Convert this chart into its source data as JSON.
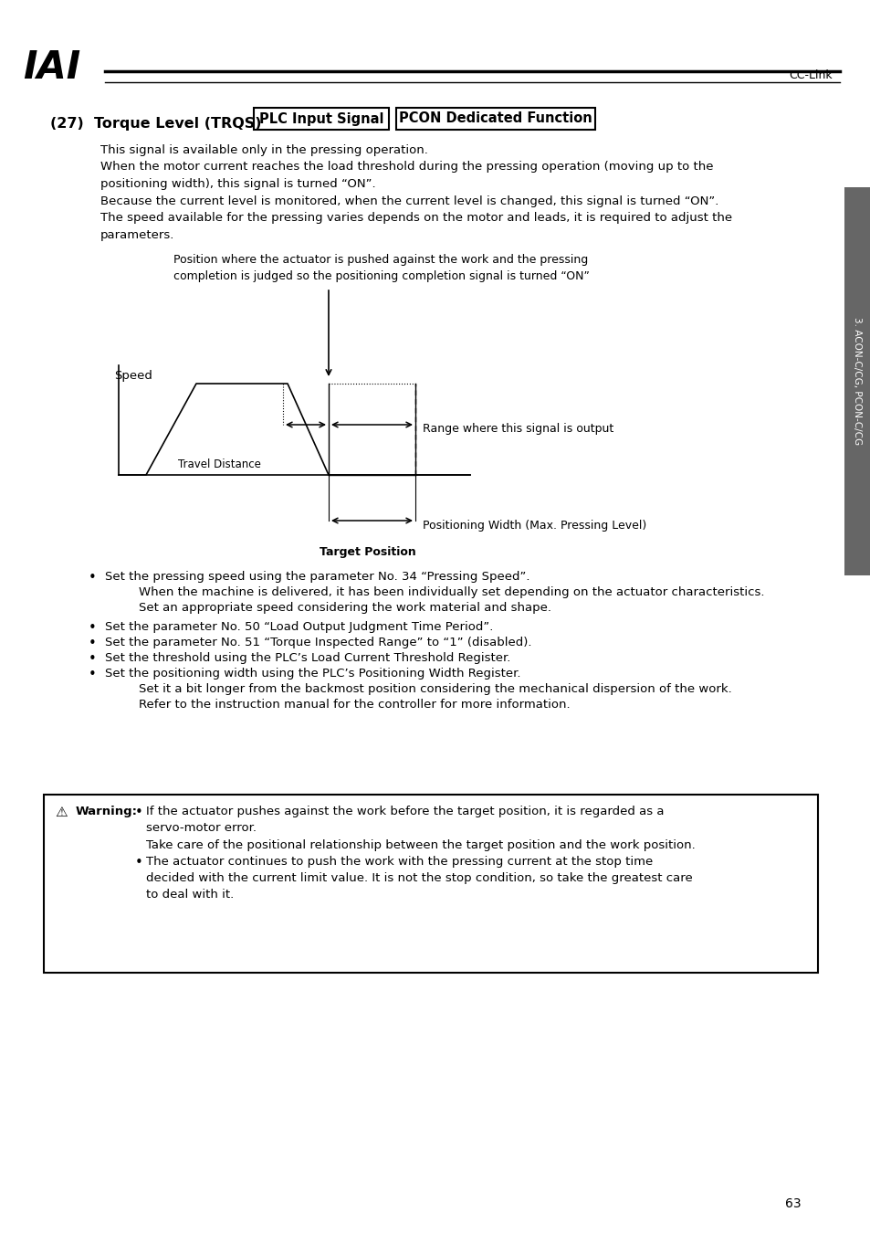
{
  "page_bg": "#ffffff",
  "header_text": "CC-Link",
  "iai_logo": "IAI",
  "section_title": "(27)  Torque Level (TRQS)",
  "box1_text": "PLC Input Signal",
  "box2_text": "PCON Dedicated Function",
  "para1": "This signal is available only in the pressing operation.",
  "para2": "When the motor current reaches the load threshold during the pressing operation (moving up to the\npositioning width), this signal is turned “ON”.",
  "para3": "Because the current level is monitored, when the current level is changed, this signal is turned “ON”.",
  "para4": "The speed available for the pressing varies depends on the motor and leads, it is required to adjust the\nparameters.",
  "diagram_note": "Position where the actuator is pushed against the work and the pressing\ncompletion is judged so the positioning completion signal is turned “ON”",
  "speed_label": "Speed",
  "travel_distance_label": "Travel Distance",
  "range_label": "Range where this signal is output",
  "positioning_width_label": "Positioning Width (Max. Pressing Level)",
  "target_position_label": "Target Position",
  "bullet1_main": "Set the pressing speed using the parameter No. 34 “Pressing Speed”.",
  "bullet1_sub1": "When the machine is delivered, it has been individually set depending on the actuator characteristics.",
  "bullet1_sub2": "Set an appropriate speed considering the work material and shape.",
  "bullet2": "Set the parameter No. 50 “Load Output Judgment Time Period”.",
  "bullet3": "Set the parameter No. 51 “Torque Inspected Range” to “1” (disabled).",
  "bullet4": "Set the threshold using the PLC’s Load Current Threshold Register.",
  "bullet5_main": "Set the positioning width using the PLC’s Positioning Width Register.",
  "bullet5_sub1": "Set it a bit longer from the backmost position considering the mechanical dispersion of the work.",
  "bullet5_sub2": "Refer to the instruction manual for the controller for more information.",
  "warning_title": "Warning:",
  "warning1_main": "If the actuator pushes against the work before the target position, it is regarded as a\nservo-motor error.",
  "warning1_sub": "Take care of the positional relationship between the target position and the work position.",
  "warning2_main": "The actuator continues to push the work with the pressing current at the stop time\ndecided with the current limit value. It is not the stop condition, so take the greatest care\nto deal with it.",
  "sidebar_text": "3. ACON-C/CG, PCON-C/CG",
  "page_number": "63",
  "body_fs": 9.5,
  "note_fs": 9.0
}
